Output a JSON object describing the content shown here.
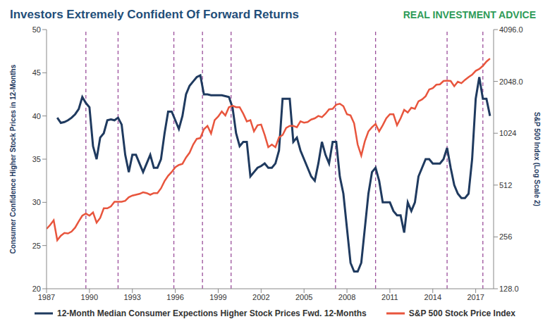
{
  "chart_data": {
    "type": "line",
    "title": "Investors Extremely Confident Of Forward Returns",
    "logo_text": "REAL INVESTMENT ADVICE",
    "y_label": "Consumer Confidence Higher Stock Prices in 12-Months",
    "y2_label": "S&P 500 Index (Log Scale 2)",
    "x": [
      1987,
      1987.25,
      1987.5,
      1987.75,
      1988,
      1988.25,
      1988.5,
      1988.75,
      1989,
      1989.25,
      1989.5,
      1989.75,
      1990,
      1990.25,
      1990.5,
      1990.75,
      1991,
      1991.25,
      1991.5,
      1991.75,
      1992,
      1992.25,
      1992.5,
      1992.75,
      1993,
      1993.25,
      1993.5,
      1993.75,
      1994,
      1994.25,
      1994.5,
      1994.75,
      1995,
      1995.25,
      1995.5,
      1995.75,
      1996,
      1996.25,
      1996.5,
      1996.75,
      1997,
      1997.25,
      1997.5,
      1997.75,
      1998,
      1998.25,
      1998.5,
      1998.75,
      1999,
      1999.25,
      1999.5,
      1999.75,
      2000,
      2000.25,
      2000.5,
      2000.75,
      2001,
      2001.25,
      2001.5,
      2001.75,
      2002,
      2002.25,
      2002.5,
      2002.75,
      2003,
      2003.25,
      2003.5,
      2003.75,
      2004,
      2004.25,
      2004.5,
      2004.75,
      2005,
      2005.25,
      2005.5,
      2005.75,
      2006,
      2006.25,
      2006.5,
      2006.75,
      2007,
      2007.25,
      2007.5,
      2007.75,
      2008,
      2008.25,
      2008.5,
      2008.75,
      2009,
      2009.25,
      2009.5,
      2009.75,
      2010,
      2010.25,
      2010.5,
      2010.75,
      2011,
      2011.25,
      2011.5,
      2011.75,
      2012,
      2012.25,
      2012.5,
      2012.75,
      2013,
      2013.25,
      2013.5,
      2013.75,
      2014,
      2014.25,
      2014.5,
      2014.75,
      2015,
      2015.25,
      2015.5,
      2015.75,
      2016,
      2016.25,
      2016.5,
      2016.75,
      2017,
      2017.25,
      2017.5,
      2017.75,
      2018
    ],
    "series": [
      {
        "name": "12-Month Median Consumer Expections Higher Stock Prices Fwd. 12-Months",
        "color": "#1f3a5f",
        "axis": "y",
        "values": [
          null,
          null,
          null,
          39.8,
          39.2,
          39.3,
          39.5,
          39.8,
          40.2,
          40.8,
          42.2,
          41.5,
          41,
          36.5,
          35,
          37.5,
          38,
          39.5,
          39.6,
          39.5,
          39.8,
          39,
          35.5,
          33.5,
          35.5,
          35.5,
          34.5,
          33.5,
          34.5,
          35.5,
          34,
          34,
          35,
          38,
          40.5,
          40.5,
          39.5,
          38.5,
          40,
          42.5,
          43.5,
          44,
          44.5,
          44.7,
          42.5,
          42.5,
          42.4,
          42.4,
          42.4,
          42.4,
          42.3,
          42.2,
          41,
          38,
          36.5,
          37,
          37,
          33,
          33.5,
          34,
          34.2,
          34.5,
          34,
          34,
          34.5,
          36,
          42,
          42,
          42,
          37,
          37.5,
          36,
          35,
          34,
          33,
          32.5,
          34.5,
          37,
          35.5,
          34.5,
          37,
          37,
          33,
          31,
          27,
          23,
          22,
          22,
          23,
          27,
          31,
          33.5,
          34,
          32.5,
          30,
          30,
          30,
          29,
          28.5,
          28.5,
          26.5,
          30,
          29,
          30,
          33,
          34,
          35,
          35,
          34.5,
          34.5,
          34.5,
          35,
          36.3,
          34,
          32,
          31,
          30.5,
          30.5,
          31,
          35,
          42,
          44.5,
          42,
          42,
          40
        ]
      },
      {
        "name": "S&P 500 Stock Price Index",
        "color": "#e8553d",
        "axis": "y2",
        "values": [
          285,
          300,
          320,
          245,
          260,
          270,
          268,
          275,
          290,
          315,
          340,
          350,
          340,
          355,
          310,
          330,
          375,
          375,
          385,
          410,
          410,
          410,
          415,
          435,
          445,
          450,
          455,
          465,
          460,
          450,
          460,
          460,
          490,
          540,
          580,
          610,
          650,
          670,
          680,
          740,
          790,
          880,
          950,
          960,
          1080,
          1130,
          1020,
          1220,
          1280,
          1370,
          1300,
          1450,
          1480,
          1450,
          1450,
          1330,
          1200,
          1220,
          1050,
          1140,
          1150,
          1000,
          850,
          880,
          850,
          970,
          1000,
          1100,
          1130,
          1130,
          1110,
          1200,
          1180,
          1190,
          1230,
          1250,
          1290,
          1270,
          1330,
          1410,
          1420,
          1500,
          1520,
          1470,
          1320,
          1300,
          1170,
          880,
          760,
          920,
          1050,
          1110,
          1160,
          1050,
          1140,
          1250,
          1320,
          1320,
          1140,
          1250,
          1400,
          1350,
          1440,
          1420,
          1570,
          1610,
          1680,
          1840,
          1870,
          1960,
          1970,
          2060,
          2070,
          2060,
          1920,
          2040,
          2000,
          2090,
          2170,
          2240,
          2360,
          2420,
          2520,
          2670,
          2780
        ]
      }
    ],
    "reference_lines": {
      "x": [
        1989.75,
        1992,
        1995.9,
        1997.9,
        1999.9,
        2007.2,
        2010,
        2015,
        2017.5
      ],
      "color": "#9b4f9b",
      "line_style": "dashed"
    },
    "xlim": [
      1987,
      2018.25
    ],
    "xticks": [
      1987,
      1990,
      1993,
      1996,
      1999,
      2002,
      2005,
      2008,
      2011,
      2014,
      2017
    ],
    "ylim": [
      20,
      50
    ],
    "yticks": [
      20,
      25,
      30,
      35,
      40,
      45,
      50
    ],
    "y2lim": [
      128,
      4096
    ],
    "y2ticks": [
      {
        "value": 128,
        "label": "128.0"
      },
      256,
      512,
      1024,
      {
        "value": 2048,
        "label": "2048.0"
      },
      {
        "value": 4096,
        "label": "4096.0"
      }
    ],
    "log": "y2",
    "grid": false,
    "legend": "bottom"
  }
}
